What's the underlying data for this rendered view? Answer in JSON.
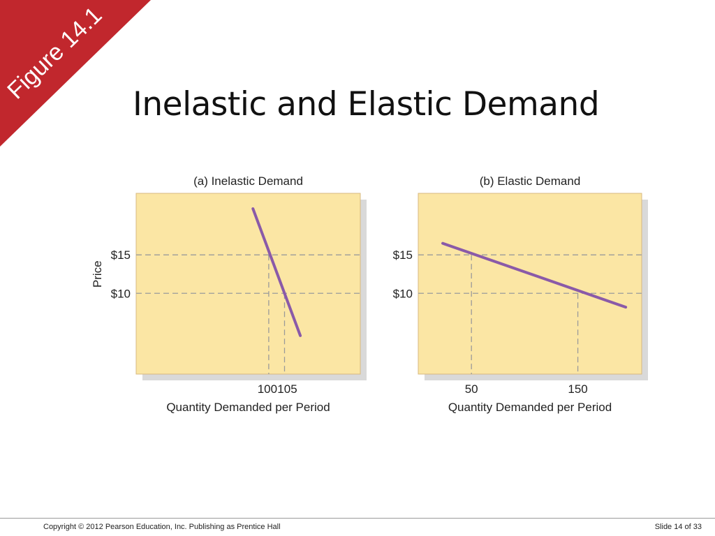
{
  "slide": {
    "title": "Inelastic and Elastic Demand",
    "banner_label": "Figure 14.1",
    "footer_copyright": "Copyright © 2012 Pearson Education, Inc. Publishing as Prentice Hall",
    "footer_slide_number": "Slide 14 of 33"
  },
  "colors": {
    "banner": "#c1272d",
    "plot_background": "#fbe6a4",
    "plot_shadow": "#d9d9d9",
    "demand_line": "#8a5aa8",
    "guide_lines": "#9a9a9a"
  },
  "chart_data": [
    {
      "type": "line",
      "title": "(a) Inelastic Demand",
      "xlabel": "Quantity Demanded per Period",
      "ylabel": "Price",
      "x_ticks": [
        100,
        105
      ],
      "x_tick_labels": [
        "100",
        "105"
      ],
      "y_ticks": [
        10,
        15
      ],
      "y_tick_labels": [
        "$10",
        "$15"
      ],
      "xlim": [
        58,
        129
      ],
      "ylim": [
        -0.5,
        23
      ],
      "grid": false,
      "series": [
        {
          "x": [
            95,
            110
          ],
          "y": [
            21,
            4.5
          ]
        }
      ],
      "reference_points": [
        {
          "x": 100,
          "y": 15
        },
        {
          "x": 105,
          "y": 10
        }
      ]
    },
    {
      "type": "line",
      "title": "(b) Elastic Demand",
      "xlabel": "Quantity Demanded per Period",
      "ylabel": "",
      "x_ticks": [
        50,
        150
      ],
      "x_tick_labels": [
        "50",
        "150"
      ],
      "y_ticks": [
        10,
        15
      ],
      "y_tick_labels": [
        "$10",
        "$15"
      ],
      "xlim": [
        0,
        210
      ],
      "ylim": [
        -0.5,
        23
      ],
      "grid": false,
      "series": [
        {
          "x": [
            23,
            195
          ],
          "y": [
            16.5,
            8.2
          ]
        }
      ],
      "reference_points": [
        {
          "x": 50,
          "y": 15
        },
        {
          "x": 150,
          "y": 10
        }
      ]
    }
  ]
}
